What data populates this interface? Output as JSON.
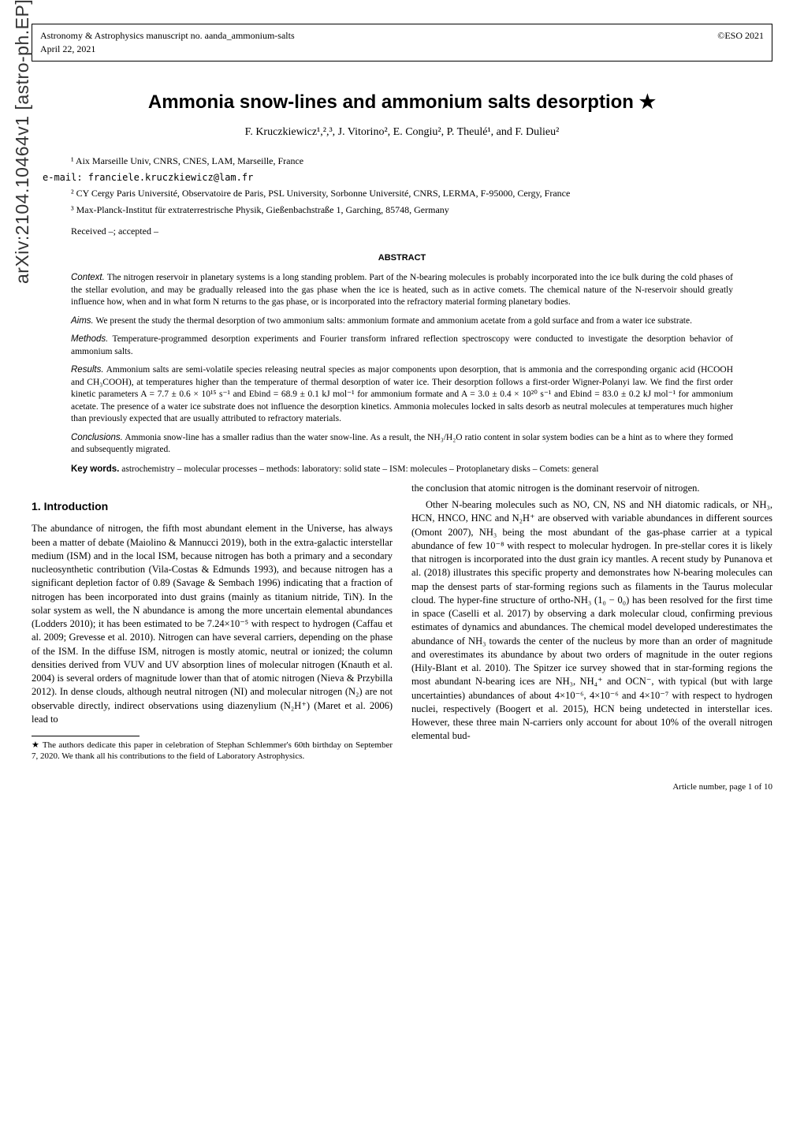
{
  "arxiv": "arXiv:2104.10464v1  [astro-ph.EP]  21 Apr 2021",
  "header": {
    "left_line1": "Astronomy & Astrophysics manuscript no. aanda_ammonium-salts",
    "left_line2": "April 22, 2021",
    "right": "©ESO 2021"
  },
  "title": "Ammonia snow-lines and ammonium salts desorption ★",
  "authors": "F. Kruczkiewicz¹,²,³, J. Vitorino², E. Congiu², P. Theulé¹, and F. Dulieu²",
  "affiliations": [
    "¹ Aix Marseille Univ, CNRS, CNES, LAM, Marseille, France",
    "e-mail: franciele.kruczkiewicz@lam.fr",
    "² CY Cergy Paris Université, Observatoire de Paris, PSL University, Sorbonne Université, CNRS, LERMA, F-95000, Cergy, France",
    "³ Max-Planck-Institut für extraterrestrische Physik, Gießenbachstraße 1, Garching, 85748, Germany"
  ],
  "received": "Received –; accepted –",
  "abstract_title": "ABSTRACT",
  "abstract": {
    "context_label": "Context.",
    "context": " The nitrogen reservoir in planetary systems is a long standing problem. Part of the N-bearing molecules is probably incorporated into the ice bulk during the cold phases of the stellar evolution, and may be gradually released into the gas phase when the ice is heated, such as in active comets. The chemical nature of the N-reservoir should greatly influence how, when and in what form N returns to the gas phase, or is incorporated into the refractory material forming planetary bodies.",
    "aims_label": "Aims.",
    "aims": " We present the study the thermal desorption of two ammonium salts: ammonium formate and ammonium acetate from a gold surface and from a water ice substrate.",
    "methods_label": "Methods.",
    "methods": " Temperature-programmed desorption experiments and Fourier transform infrared reflection spectroscopy were conducted to investigate the desorption behavior of ammonium salts.",
    "results_label": "Results.",
    "results": " Ammonium salts are semi-volatile species releasing neutral species as major components upon desorption, that is ammonia and the corresponding organic acid (HCOOH and CH₃COOH), at temperatures higher than the temperature of thermal desorption of water ice. Their desorption follows a first-order Wigner-Polanyi law. We find the first order kinetic parameters A = 7.7 ± 0.6 × 10¹⁵ s⁻¹ and Ebind = 68.9 ± 0.1 kJ mol⁻¹ for ammonium formate and A = 3.0 ± 0.4 × 10²⁰ s⁻¹ and Ebind = 83.0 ± 0.2 kJ mol⁻¹ for ammonium acetate. The presence of a water ice substrate does not influence the desorption kinetics. Ammonia molecules locked in salts desorb as neutral molecules at temperatures much higher than previously expected that are usually attributed to refractory materials.",
    "conclusions_label": "Conclusions.",
    "conclusions": " Ammonia snow-line has a smaller radius than the water snow-line. As a result, the NH₃/H₂O ratio content in solar system bodies can be a hint as to where they formed and subsequently migrated."
  },
  "keywords_label": "Key words.",
  "keywords": " astrochemistry – molecular processes – methods: laboratory: solid state – ISM: molecules – Protoplanetary disks – Comets: general",
  "section1": "1. Introduction",
  "col1_p1": "The abundance of nitrogen, the fifth most abundant element in the Universe, has always been a matter of debate (Maiolino & Mannucci 2019), both in the extra-galactic interstellar medium (ISM) and in the local ISM, because nitrogen has both a primary and a secondary nucleosynthetic contribution (Vila-Costas & Edmunds 1993), and because nitrogen has a significant depletion factor of 0.89 (Savage & Sembach 1996) indicating that a fraction of nitrogen has been incorporated into dust grains (mainly as titanium nitride, TiN). In the solar system as well, the N abundance is among the more uncertain elemental abundances (Lodders 2010); it has been estimated to be 7.24×10⁻⁵ with respect to hydrogen (Caffau et al. 2009; Grevesse et al. 2010). Nitrogen can have several carriers, depending on the phase of the ISM. In the diffuse ISM, nitrogen is mostly atomic, neutral or ionized; the column densities derived from VUV and UV absorption lines of molecular nitrogen (Knauth et al. 2004) is several orders of magnitude lower than that of atomic nitrogen (Nieva & Przybilla 2012). In dense clouds, although neutral nitrogen (NI) and molecular nitrogen (N₂) are not observable directly, indirect observations using diazenylium (N₂H⁺) (Maret et al. 2006) lead to",
  "footnote": "★ The authors dedicate this paper in celebration of Stephan Schlemmer's 60th birthday on September 7, 2020. We thank all his contributions to the field of Laboratory Astrophysics.",
  "col2_p0": "the conclusion that atomic nitrogen is the dominant reservoir of nitrogen.",
  "col2_p1": "Other N-bearing molecules such as NO, CN, NS and NH diatomic radicals, or NH₃, HCN, HNCO, HNC and N₂H⁺ are observed with variable abundances in different sources (Omont 2007), NH₃ being the most abundant of the gas-phase carrier at a typical abundance of few 10⁻⁸ with respect to molecular hydrogen. In pre-stellar cores it is likely that nitrogen is incorporated into the dust grain icy mantles. A recent study by Punanova et al. (2018) illustrates this specific property and demonstrates how N-bearing molecules can map the densest parts of star-forming regions such as filaments in the Taurus molecular cloud. The hyper-fine structure of ortho-NH₃ (1₀ − 0₀) has been resolved for the first time in space (Caselli et al. 2017) by observing a dark molecular cloud, confirming previous estimates of dynamics and abundances. The chemical model developed underestimates the abundance of NH₃ towards the center of the nucleus by more than an order of magnitude and overestimates its abundance by about two orders of magnitude in the outer regions (Hily-Blant et al. 2010). The Spitzer ice survey showed that in star-forming regions the most abundant N-bearing ices are NH₃, NH₄⁺ and OCN⁻, with typical (but with large uncertainties) abundances of about 4×10⁻⁶, 4×10⁻⁶ and 4×10⁻⁷ with respect to hydrogen nuclei, respectively (Boogert et al. 2015), HCN being undetected in interstellar ices. However, these three main N-carriers only account for about 10% of the overall nitrogen elemental bud-",
  "page_num": "Article number, page 1 of 10"
}
